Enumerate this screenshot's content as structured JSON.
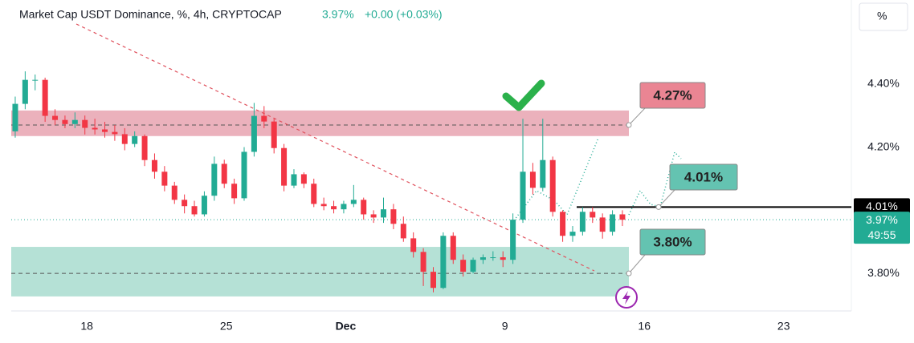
{
  "chart_data": {
    "type": "candlestick",
    "title": "Market Cap USDT Dominance, %, 4h, CRYPTOCAP",
    "last_price": 3.97,
    "last_price_label": "3.97%",
    "change": "+0.00 (+0.03%)",
    "countdown": "49:55",
    "scale_button": "%",
    "up_color": "#22ab94",
    "down_color": "#f23645",
    "xlim": [
      14.2,
      56.4
    ],
    "ylim": [
      3.681,
      4.666
    ],
    "xticks": [
      18,
      25,
      {
        "value": 31,
        "label": "Dec"
      },
      {
        "value": 39,
        "label": "9"
      },
      {
        "value": 46,
        "label": "16"
      },
      {
        "value": 53,
        "label": "23"
      }
    ],
    "yticks": [
      {
        "value": 4.4,
        "label": "4.40%"
      },
      {
        "value": 4.2,
        "label": "4.20%"
      },
      {
        "value": 3.8,
        "label": "3.80%"
      }
    ],
    "zones": [
      {
        "from": 4.235,
        "to": 4.316,
        "color": "#e7a3b0"
      },
      {
        "from": 3.727,
        "to": 3.884,
        "color": "#a8dccf"
      }
    ],
    "annotations": [
      {
        "value": 4.27,
        "label": "4.27%",
        "color": "#ea8593"
      },
      {
        "value": 4.01,
        "label": "4.01%",
        "color": "#64c3b1"
      },
      {
        "value": 3.8,
        "label": "3.80%",
        "color": "#64c3b1"
      }
    ],
    "x": [
      14.4,
      14.9,
      15.4,
      15.9,
      16.4,
      16.9,
      17.4,
      17.9,
      18.4,
      18.9,
      19.4,
      19.9,
      20.4,
      20.9,
      21.4,
      21.9,
      22.4,
      22.9,
      23.4,
      23.9,
      24.4,
      24.9,
      25.4,
      25.9,
      26.4,
      26.9,
      27.4,
      27.9,
      28.4,
      28.9,
      29.4,
      29.9,
      30.4,
      30.9,
      31.4,
      31.9,
      32.4,
      32.9,
      33.4,
      33.9,
      34.4,
      34.9,
      35.4,
      35.9,
      36.4,
      36.9,
      37.4,
      37.9,
      38.4,
      38.9,
      39.4,
      39.9,
      40.4,
      40.9,
      41.4,
      41.9,
      42.4,
      42.9,
      43.4,
      43.9,
      44.4,
      44.9
    ],
    "candles": [
      [
        4.25,
        4.36,
        4.23,
        4.337
      ],
      [
        4.337,
        4.44,
        4.32,
        4.413
      ],
      [
        4.413,
        4.43,
        4.38,
        4.413
      ],
      [
        4.413,
        4.42,
        4.28,
        4.299
      ],
      [
        4.299,
        4.32,
        4.27,
        4.286
      ],
      [
        4.286,
        4.3,
        4.26,
        4.273
      ],
      [
        4.273,
        4.31,
        4.26,
        4.286
      ],
      [
        4.286,
        4.3,
        4.24,
        4.261
      ],
      [
        4.261,
        4.29,
        4.24,
        4.256
      ],
      [
        4.256,
        4.28,
        4.23,
        4.248
      ],
      [
        4.248,
        4.27,
        4.22,
        4.241
      ],
      [
        4.241,
        4.26,
        4.19,
        4.21
      ],
      [
        4.21,
        4.25,
        4.2,
        4.235
      ],
      [
        4.235,
        4.24,
        4.14,
        4.159
      ],
      [
        4.159,
        4.18,
        4.1,
        4.122
      ],
      [
        4.122,
        4.14,
        4.06,
        4.078
      ],
      [
        4.078,
        4.09,
        4.02,
        4.033
      ],
      [
        4.033,
        4.05,
        3.99,
        4.013
      ],
      [
        4.013,
        4.03,
        3.98,
        3.987
      ],
      [
        3.987,
        4.06,
        3.98,
        4.046
      ],
      [
        4.046,
        4.17,
        4.03,
        4.147
      ],
      [
        4.147,
        4.16,
        4.07,
        4.084
      ],
      [
        4.084,
        4.1,
        4.02,
        4.038
      ],
      [
        4.038,
        4.2,
        4.03,
        4.185
      ],
      [
        4.185,
        4.34,
        4.17,
        4.299
      ],
      [
        4.299,
        4.33,
        4.26,
        4.281
      ],
      [
        4.281,
        4.29,
        4.18,
        4.197
      ],
      [
        4.197,
        4.21,
        4.06,
        4.078
      ],
      [
        4.078,
        4.13,
        4.07,
        4.114
      ],
      [
        4.114,
        4.12,
        4.07,
        4.084
      ],
      [
        4.084,
        4.1,
        4.01,
        4.02
      ],
      [
        4.02,
        4.04,
        4.0,
        4.013
      ],
      [
        4.013,
        4.03,
        3.99,
        4.003
      ],
      [
        4.003,
        4.03,
        3.99,
        4.02
      ],
      [
        4.02,
        4.08,
        4.01,
        4.033
      ],
      [
        4.033,
        4.04,
        3.97,
        3.987
      ],
      [
        3.987,
        4.0,
        3.96,
        3.977
      ],
      [
        3.977,
        4.04,
        3.96,
        4.003
      ],
      [
        4.003,
        4.02,
        3.94,
        3.957
      ],
      [
        3.957,
        3.98,
        3.9,
        3.911
      ],
      [
        3.911,
        3.93,
        3.85,
        3.868
      ],
      [
        3.868,
        3.88,
        3.76,
        3.805
      ],
      [
        3.805,
        3.82,
        3.74,
        3.754
      ],
      [
        3.754,
        3.93,
        3.75,
        3.919
      ],
      [
        3.919,
        3.93,
        3.83,
        3.843
      ],
      [
        3.843,
        3.86,
        3.79,
        3.805
      ],
      [
        3.805,
        3.85,
        3.8,
        3.843
      ],
      [
        3.843,
        3.86,
        3.83,
        3.851
      ],
      [
        3.851,
        3.87,
        3.84,
        3.851
      ],
      [
        3.851,
        3.87,
        3.82,
        3.843
      ],
      [
        3.843,
        3.99,
        3.83,
        3.97
      ],
      [
        3.97,
        4.29,
        3.96,
        4.122
      ],
      [
        4.122,
        4.15,
        4.05,
        4.071
      ],
      [
        4.071,
        4.29,
        4.06,
        4.159
      ],
      [
        4.159,
        4.17,
        3.98,
        3.995
      ],
      [
        3.995,
        4.0,
        3.9,
        3.919
      ],
      [
        3.919,
        3.95,
        3.9,
        3.932
      ],
      [
        3.932,
        4.01,
        3.92,
        3.995
      ],
      [
        3.995,
        4.01,
        3.96,
        3.977
      ],
      [
        3.977,
        3.99,
        3.91,
        3.932
      ],
      [
        3.932,
        4.0,
        3.92,
        3.987
      ],
      [
        3.987,
        4.0,
        3.95,
        3.97
      ]
    ]
  }
}
